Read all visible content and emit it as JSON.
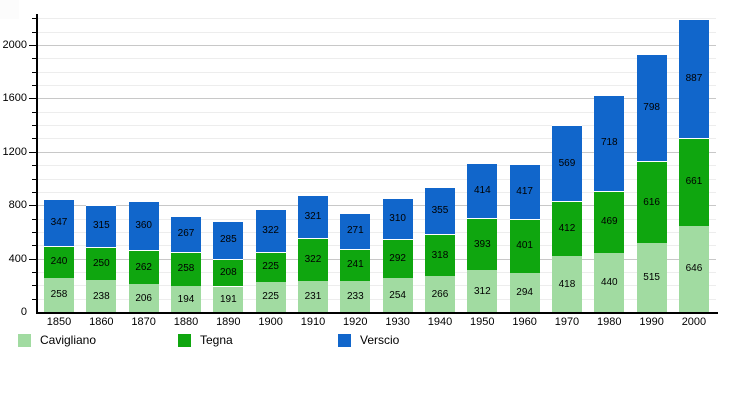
{
  "chart_data": {
    "type": "bar",
    "stacked": true,
    "title": "",
    "categories": [
      "1850",
      "1860",
      "1870",
      "1880",
      "1890",
      "1900",
      "1910",
      "1920",
      "1930",
      "1940",
      "1950",
      "1960",
      "1970",
      "1980",
      "1990",
      "2000"
    ],
    "series": [
      {
        "name": "Cavigliano",
        "color": "#a1dba1",
        "values": [
          258,
          238,
          206,
          194,
          191,
          225,
          231,
          233,
          254,
          266,
          312,
          294,
          418,
          440,
          515,
          646
        ]
      },
      {
        "name": "Tegna",
        "color": "#0fa60f",
        "values": [
          240,
          250,
          262,
          258,
          208,
          225,
          322,
          241,
          292,
          318,
          393,
          401,
          412,
          469,
          616,
          661
        ]
      },
      {
        "name": "Verscio",
        "color": "#1166cb",
        "values": [
          347,
          315,
          360,
          267,
          285,
          322,
          321,
          271,
          310,
          355,
          414,
          417,
          569,
          718,
          798,
          887
        ]
      }
    ],
    "ylim": [
      0,
      2230
    ],
    "y_major_ticks": [
      0,
      400,
      800,
      1200,
      1600,
      2000
    ],
    "y_minor_step": 100,
    "grid": "horizontal",
    "legend_position": "bottom",
    "bar_value_labels": true
  },
  "axes": {
    "y_labels": [
      "0",
      "400",
      "800",
      "1200",
      "1600",
      "2000"
    ],
    "x_labels": [
      "1850",
      "1860",
      "1870",
      "1880",
      "1890",
      "1900",
      "1910",
      "1920",
      "1930",
      "1940",
      "1950",
      "1960",
      "1970",
      "1980",
      "1990",
      "2000"
    ]
  },
  "legend": {
    "items": [
      {
        "label": "Cavigliano",
        "color": "#a1dba1"
      },
      {
        "label": "Tegna",
        "color": "#0fa60f"
      },
      {
        "label": "Verscio",
        "color": "#1166cb"
      }
    ]
  },
  "colors": {
    "background": "#ffffff",
    "axis": "#000000",
    "grid_minor": "#ededed",
    "grid_major": "#c8c8c8",
    "value_label": "#000000"
  }
}
